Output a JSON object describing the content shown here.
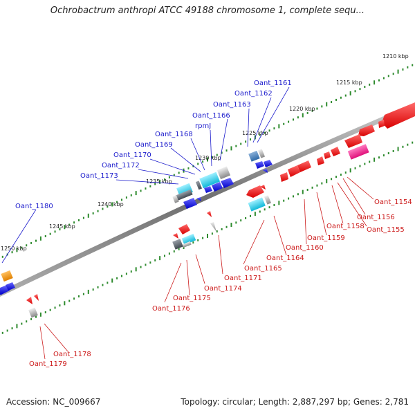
{
  "title": "Ochrobactrum anthropi ATCC 49188 chromosome 1, complete sequ...",
  "footer": {
    "accession": "Accession: NC_009667",
    "stats": "Topology: circular; Length: 2,887,297 bp; Genes: 2,781"
  },
  "ticks": [
    "1210 kbp",
    "1215 kbp",
    "1220 kbp",
    "1225 kbp",
    "1230 kbp",
    "1235 kbp",
    "1240 kbp",
    "1245 kbp",
    "1250 kbp"
  ],
  "colors": {
    "forward_label": "#1a1acc",
    "reverse_label": "#cc1a1a",
    "backbone": "#888888",
    "tick": "#2e8b2e"
  },
  "forward_genes": [
    "Oant_1161",
    "Oant_1162",
    "Oant_1163",
    "Oant_1166",
    "rpmJ",
    "Oant_1168",
    "Oant_1169",
    "Oant_1170",
    "Oant_1172",
    "Oant_1173",
    "Oant_1180"
  ],
  "reverse_genes": [
    "Oant_1154",
    "Oant_1156",
    "Oant_1155",
    "Oant_1158",
    "Oant_1159",
    "Oant_1160",
    "Oant_1164",
    "Oant_1165",
    "Oant_1171",
    "Oant_1174",
    "Oant_1175",
    "Oant_1176",
    "Oant_1178",
    "Oant_1179"
  ]
}
